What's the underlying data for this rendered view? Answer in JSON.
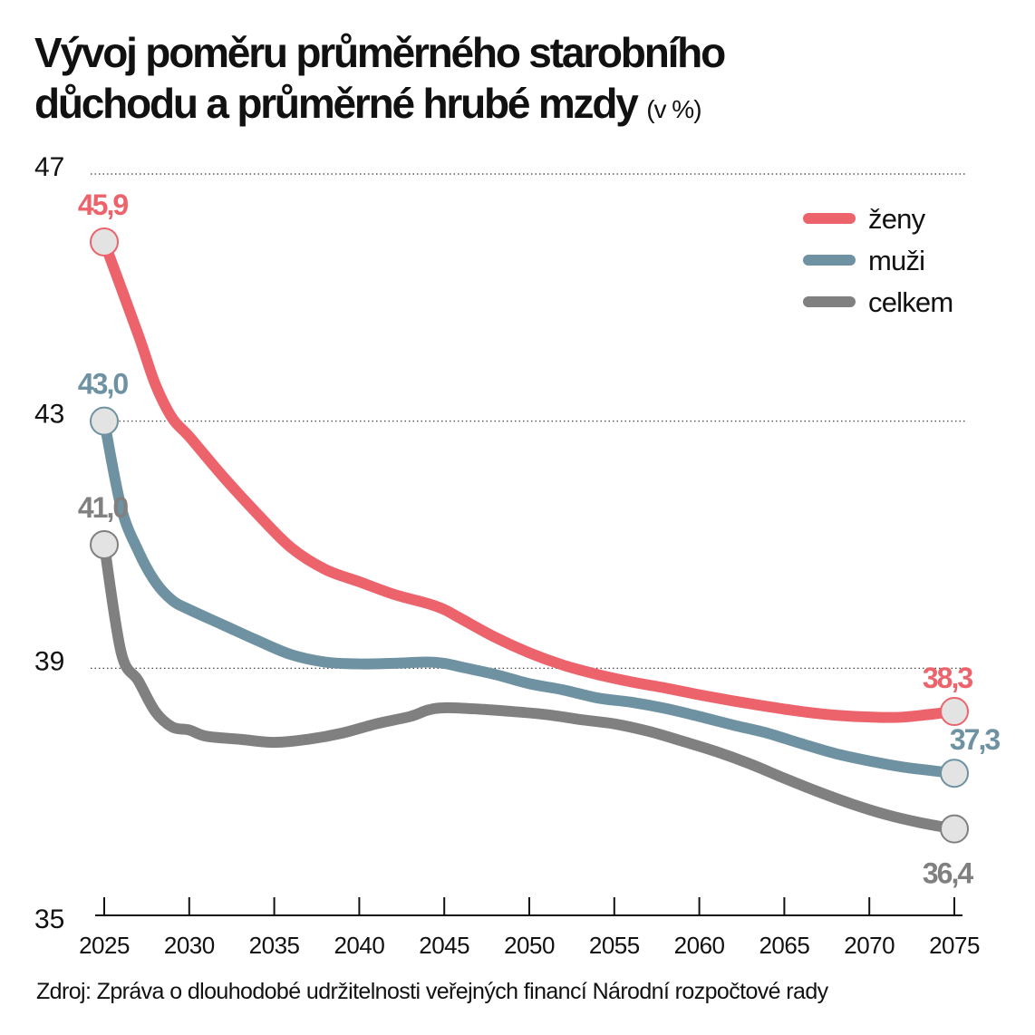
{
  "chart_data": {
    "type": "line",
    "title_line1": "Vývoj poměru průměrného starobního",
    "title_line2": "důchodu a průměrné hrubé mzdy",
    "unit": "(v %)",
    "ylim": [
      35,
      47
    ],
    "yticks": [
      35,
      39,
      43,
      47
    ],
    "ytick_labels": [
      "35",
      "39",
      "43",
      "47"
    ],
    "xlim": [
      2025,
      2075
    ],
    "xticks": [
      2025,
      2030,
      2035,
      2040,
      2045,
      2050,
      2055,
      2060,
      2065,
      2070,
      2075
    ],
    "xtick_labels": [
      "2025",
      "2030",
      "2035",
      "2040",
      "2045",
      "2050",
      "2055",
      "2060",
      "2065",
      "2070",
      "2075"
    ],
    "grid": "horizontal dotted",
    "legend_position": "top-right",
    "series": [
      {
        "name": "ženy",
        "color": "#ec636b",
        "x": [
          2025,
          2027,
          2028,
          2029,
          2030,
          2032,
          2034,
          2036,
          2038,
          2040,
          2042,
          2044,
          2045,
          2046,
          2048,
          2050,
          2052,
          2054,
          2056,
          2058,
          2060,
          2062,
          2064,
          2066,
          2068,
          2070,
          2072,
          2075
        ],
        "y": [
          45.9,
          44.4,
          43.6,
          43.05,
          42.75,
          42.1,
          41.5,
          40.95,
          40.6,
          40.4,
          40.2,
          40.05,
          39.95,
          39.8,
          39.5,
          39.25,
          39.05,
          38.9,
          38.78,
          38.68,
          38.57,
          38.47,
          38.38,
          38.3,
          38.24,
          38.21,
          38.21,
          38.3
        ],
        "start_label": "45,9",
        "end_label": "38,3"
      },
      {
        "name": "muži",
        "color": "#6f92a2",
        "x": [
          2025,
          2026,
          2027,
          2028,
          2029,
          2030,
          2032,
          2034,
          2036,
          2038,
          2040,
          2042,
          2044,
          2045,
          2046,
          2048,
          2050,
          2052,
          2054,
          2056,
          2058,
          2060,
          2062,
          2064,
          2066,
          2068,
          2070,
          2072,
          2075
        ],
        "y": [
          43.0,
          41.6,
          40.9,
          40.4,
          40.1,
          39.95,
          39.7,
          39.45,
          39.22,
          39.1,
          39.07,
          39.08,
          39.1,
          39.08,
          39.02,
          38.9,
          38.75,
          38.65,
          38.52,
          38.45,
          38.35,
          38.22,
          38.08,
          37.95,
          37.78,
          37.62,
          37.5,
          37.4,
          37.3
        ],
        "start_label": "43,0",
        "end_label": "37,3"
      },
      {
        "name": "celkem",
        "color": "#808080",
        "x": [
          2025,
          2026,
          2027,
          2028,
          2029,
          2030,
          2031,
          2033,
          2035,
          2037,
          2039,
          2041,
          2043,
          2044,
          2045,
          2047,
          2049,
          2051,
          2053,
          2055,
          2057,
          2059,
          2061,
          2063,
          2065,
          2067,
          2069,
          2071,
          2073,
          2075
        ],
        "y": [
          41.0,
          39.25,
          38.8,
          38.3,
          38.05,
          38.0,
          37.9,
          37.85,
          37.8,
          37.85,
          37.95,
          38.1,
          38.22,
          38.32,
          38.36,
          38.34,
          38.3,
          38.25,
          38.17,
          38.1,
          37.98,
          37.82,
          37.65,
          37.45,
          37.22,
          37.0,
          36.8,
          36.63,
          36.5,
          36.4
        ],
        "start_label": "41,0",
        "end_label": "36,4"
      }
    ]
  },
  "source": "Zdroj: Zpráva o dlouhodobé udržitelnosti veřejných financí Národní rozpočtové rady"
}
